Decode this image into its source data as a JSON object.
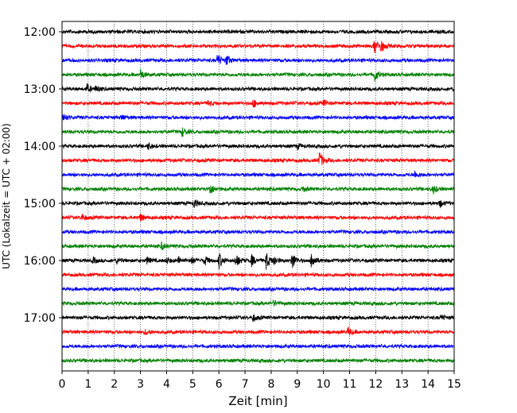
{
  "chart_data": {
    "type": "line",
    "title": "",
    "xlabel": "Zeit  [min]",
    "ylabel": "UTC (Lokalzeit = UTC + 02:00)",
    "xlim": [
      0,
      15
    ],
    "x_ticks": [
      0,
      1,
      2,
      3,
      4,
      5,
      6,
      7,
      8,
      9,
      10,
      11,
      12,
      13,
      14,
      15
    ],
    "x_tick_labels": [
      "0",
      "1",
      "2",
      "3",
      "4",
      "5",
      "6",
      "7",
      "8",
      "9",
      "10",
      "11",
      "12",
      "13",
      "14",
      "15"
    ],
    "y_tick_labels": [
      "12:00",
      "13:00",
      "14:00",
      "15:00",
      "16:00",
      "17:00"
    ],
    "y_tick_rows": [
      0,
      4,
      8,
      12,
      16,
      20
    ],
    "grid": "vertical-dotted",
    "color_cycle": [
      "#000000",
      "#ff0000",
      "#0000ff",
      "#008000"
    ],
    "rows": [
      {
        "start": "12:00",
        "color": "#000000",
        "events": []
      },
      {
        "start": "12:15",
        "color": "#ff0000",
        "events": [
          {
            "t": 11.95,
            "amp": 1.0
          },
          {
            "t": 12.2,
            "amp": 0.7
          }
        ]
      },
      {
        "start": "12:30",
        "color": "#0000ff",
        "events": [
          {
            "t": 5.95,
            "amp": 0.8
          },
          {
            "t": 6.3,
            "amp": 0.6
          }
        ]
      },
      {
        "start": "12:45",
        "color": "#008000",
        "events": [
          {
            "t": 3.0,
            "amp": 0.6
          },
          {
            "t": 11.95,
            "amp": 0.8
          }
        ]
      },
      {
        "start": "13:00",
        "color": "#000000",
        "events": [
          {
            "t": 0.95,
            "amp": 0.5
          },
          {
            "t": 1.3,
            "amp": 0.3
          }
        ]
      },
      {
        "start": "13:15",
        "color": "#ff0000",
        "events": [
          {
            "t": 5.6,
            "amp": 0.3
          },
          {
            "t": 7.3,
            "amp": 0.5
          },
          {
            "t": 10.0,
            "amp": 0.3
          }
        ]
      },
      {
        "start": "13:30",
        "color": "#0000ff",
        "events": [
          {
            "t": 0.05,
            "amp": 0.5
          },
          {
            "t": 2.3,
            "amp": 0.3
          }
        ]
      },
      {
        "start": "13:45",
        "color": "#008000",
        "events": [
          {
            "t": 4.6,
            "amp": 0.5
          }
        ]
      },
      {
        "start": "14:00",
        "color": "#000000",
        "events": [
          {
            "t": 3.3,
            "amp": 0.4
          },
          {
            "t": 9.0,
            "amp": 0.3
          }
        ]
      },
      {
        "start": "14:15",
        "color": "#ff0000",
        "events": [
          {
            "t": 9.85,
            "amp": 1.0
          }
        ]
      },
      {
        "start": "14:30",
        "color": "#0000ff",
        "events": [
          {
            "t": 13.5,
            "amp": 0.4
          }
        ]
      },
      {
        "start": "14:45",
        "color": "#008000",
        "events": [
          {
            "t": 5.65,
            "amp": 0.7
          },
          {
            "t": 9.2,
            "amp": 0.3
          },
          {
            "t": 14.2,
            "amp": 0.5
          }
        ]
      },
      {
        "start": "15:00",
        "color": "#000000",
        "events": [
          {
            "t": 5.05,
            "amp": 0.5
          },
          {
            "t": 14.45,
            "amp": 0.4
          }
        ]
      },
      {
        "start": "15:15",
        "color": "#ff0000",
        "events": [
          {
            "t": 0.75,
            "amp": 0.4
          },
          {
            "t": 3.0,
            "amp": 0.4
          }
        ]
      },
      {
        "start": "15:30",
        "color": "#0000ff",
        "events": []
      },
      {
        "start": "15:45",
        "color": "#008000",
        "events": [
          {
            "t": 3.8,
            "amp": 0.4
          }
        ]
      },
      {
        "start": "16:00",
        "color": "#000000",
        "events": [
          {
            "t": 1.2,
            "amp": 0.3
          },
          {
            "t": 2.1,
            "amp": 0.3
          },
          {
            "t": 3.25,
            "amp": 0.35
          },
          {
            "t": 4.0,
            "amp": 0.35
          },
          {
            "t": 4.45,
            "amp": 0.4
          },
          {
            "t": 4.95,
            "amp": 0.45
          },
          {
            "t": 5.45,
            "amp": 0.55
          },
          {
            "t": 6.0,
            "amp": 0.9
          },
          {
            "t": 6.65,
            "amp": 0.8
          },
          {
            "t": 7.25,
            "amp": 0.6
          },
          {
            "t": 7.8,
            "amp": 1.0
          },
          {
            "t": 8.1,
            "amp": 0.55
          },
          {
            "t": 8.8,
            "amp": 1.0
          },
          {
            "t": 9.55,
            "amp": 1.0
          }
        ]
      },
      {
        "start": "16:15",
        "color": "#ff0000",
        "events": []
      },
      {
        "start": "16:30",
        "color": "#0000ff",
        "events": []
      },
      {
        "start": "16:45",
        "color": "#008000",
        "events": [
          {
            "t": 8.1,
            "amp": 0.3
          }
        ]
      },
      {
        "start": "17:00",
        "color": "#000000",
        "events": [
          {
            "t": 7.3,
            "amp": 0.4
          },
          {
            "t": 14.5,
            "amp": 0.3
          }
        ]
      },
      {
        "start": "17:15",
        "color": "#ff0000",
        "events": [
          {
            "t": 3.2,
            "amp": 0.3
          },
          {
            "t": 10.95,
            "amp": 0.5
          }
        ]
      },
      {
        "start": "17:30",
        "color": "#0000ff",
        "events": []
      },
      {
        "start": "17:45",
        "color": "#008000",
        "events": []
      }
    ]
  }
}
